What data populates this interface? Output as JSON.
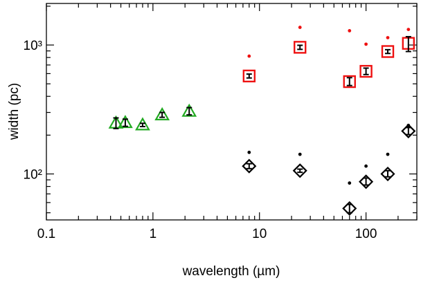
{
  "chart_data": {
    "type": "scatter",
    "title": "",
    "xlabel": "wavelength (µm)",
    "ylabel": "width (pc)",
    "xscale": "log",
    "yscale": "log",
    "xlim": [
      0.1,
      300
    ],
    "ylim": [
      44,
      2100
    ],
    "grid": false,
    "x_ticks": [
      {
        "value": 0.1,
        "label": "0.1"
      },
      {
        "value": 1,
        "label": "1"
      },
      {
        "value": 10,
        "label": "10"
      },
      {
        "value": 100,
        "label": "100"
      }
    ],
    "y_ticks": [
      {
        "value": 100,
        "label": "10²"
      },
      {
        "value": 1000,
        "label": "10³"
      }
    ],
    "colors": {
      "triangle": "#22aa22",
      "square": "#ee1111",
      "diamond": "#000000",
      "red_dot": "#ee1111",
      "black_dot": "#000000",
      "errorbar": "#000000"
    },
    "series": [
      {
        "marker": "triangle",
        "points": [
          {
            "x": 0.45,
            "y": 248,
            "yerr_low": 225,
            "yerr_high": 272
          },
          {
            "x": 0.55,
            "y": 250,
            "yerr_low": 234,
            "yerr_high": 266
          },
          {
            "x": 0.8,
            "y": 240,
            "yerr_low": 233,
            "yerr_high": 247
          },
          {
            "x": 1.22,
            "y": 287,
            "yerr_low": 275,
            "yerr_high": 300
          },
          {
            "x": 2.19,
            "y": 306,
            "yerr_low": 287,
            "yerr_high": 327
          }
        ]
      },
      {
        "marker": "square",
        "points": [
          {
            "x": 8,
            "y": 575,
            "yerr_low": 555,
            "yerr_high": 595
          },
          {
            "x": 24,
            "y": 960,
            "yerr_low": 925,
            "yerr_high": 995
          },
          {
            "x": 70,
            "y": 520,
            "yerr_low": 485,
            "yerr_high": 558
          },
          {
            "x": 100,
            "y": 625,
            "yerr_low": 590,
            "yerr_high": 662
          },
          {
            "x": 160,
            "y": 890,
            "yerr_low": 860,
            "yerr_high": 920
          },
          {
            "x": 250,
            "y": 1030,
            "yerr_low": 890,
            "yerr_high": 1160
          }
        ]
      },
      {
        "marker": "diamond",
        "points": [
          {
            "x": 8,
            "y": 115,
            "yerr_low": 110,
            "yerr_high": 120
          },
          {
            "x": 24,
            "y": 106,
            "yerr_low": 103,
            "yerr_high": 109
          },
          {
            "x": 70,
            "y": 54,
            "yerr_low": 50,
            "yerr_high": 58
          },
          {
            "x": 100,
            "y": 87,
            "yerr_low": 82,
            "yerr_high": 93
          },
          {
            "x": 160,
            "y": 100,
            "yerr_low": 95,
            "yerr_high": 106
          },
          {
            "x": 250,
            "y": 215,
            "yerr_low": 202,
            "yerr_high": 229
          }
        ]
      },
      {
        "marker": "red_dot",
        "points": [
          {
            "x": 8,
            "y": 820
          },
          {
            "x": 24,
            "y": 1370
          },
          {
            "x": 70,
            "y": 1290
          },
          {
            "x": 100,
            "y": 1015
          },
          {
            "x": 160,
            "y": 1140
          },
          {
            "x": 250,
            "y": 1320
          }
        ]
      },
      {
        "marker": "black_dot",
        "points": [
          {
            "x": 8,
            "y": 147
          },
          {
            "x": 24,
            "y": 142
          },
          {
            "x": 70,
            "y": 85
          },
          {
            "x": 100,
            "y": 115
          },
          {
            "x": 160,
            "y": 142
          },
          {
            "x": 250,
            "y": 238
          }
        ]
      }
    ]
  }
}
